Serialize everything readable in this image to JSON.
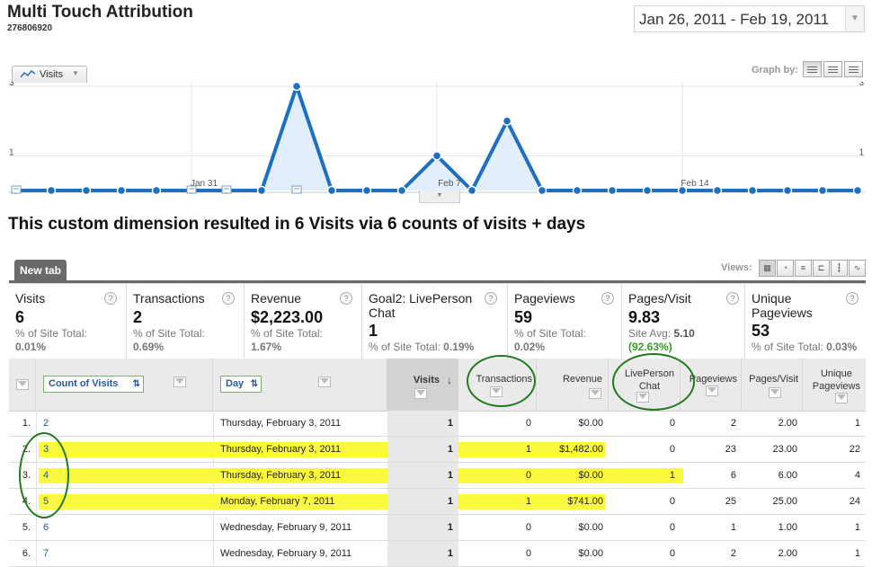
{
  "header": {
    "title": "Multi Touch Attribution",
    "profile_id": "276806920",
    "date_range": "Jan 26, 2011 - Feb 19, 2011"
  },
  "chart_controls": {
    "metric_label": "Visits",
    "graph_by_label": "Graph by:"
  },
  "chart_data": {
    "type": "line",
    "y_ticks_left": [
      "3",
      "1"
    ],
    "y_ticks_right": [
      "3",
      "1"
    ],
    "x_tick_labels": [
      "Jan 31",
      "Feb 7",
      "Feb 14"
    ],
    "ylim": [
      0,
      3
    ],
    "series": [
      {
        "values": [
          0,
          0,
          0,
          0,
          0,
          0,
          0,
          0,
          3,
          0,
          0,
          0,
          1,
          0,
          2,
          0,
          0,
          0,
          0,
          0,
          0,
          0,
          0,
          0,
          0
        ],
        "color": "#1e6fc2"
      }
    ],
    "annotation_days": [
      0,
      5,
      6,
      8
    ],
    "grid": true
  },
  "summary": {
    "heading": "This custom dimension resulted in 6 Visits via 6 counts of visits + days"
  },
  "tabs": {
    "active_label": "New tab",
    "views_label": "Views:"
  },
  "scorecard": [
    {
      "label": "Visits",
      "value": "6",
      "sub1": "% of Site Total:",
      "sub2": "0.01%"
    },
    {
      "label": "Transactions",
      "value": "2",
      "sub1": "% of Site Total:",
      "sub2": "0.69%"
    },
    {
      "label": "Revenue",
      "value": "$2,223.00",
      "sub1": "% of Site Total:",
      "sub2": "1.67%"
    },
    {
      "label": "Goal2: LivePerson Chat",
      "value": "1",
      "sub1": "% of Site Total:",
      "sub2": "0.19%"
    },
    {
      "label": "Pageviews",
      "value": "59",
      "sub1": "% of Site Total:",
      "sub2": "0.02%"
    },
    {
      "label": "Pages/Visit",
      "value": "9.83",
      "sub1": "Site Avg:",
      "sub1b": "5.10",
      "sub2": "(92.63%)"
    },
    {
      "label": "Unique Pageviews",
      "value": "53",
      "sub1": "% of Site Total:",
      "sub2": "0.03%"
    }
  ],
  "table": {
    "dim1_label": "Count of Visits",
    "dim2_label": "Day",
    "columns": {
      "visits": "Visits",
      "transactions": "Transactions",
      "revenue": "Revenue",
      "liveperson1": "LivePerson",
      "liveperson2": "Chat",
      "pageviews": "Pageviews",
      "pages_visit": "Pages/Visit",
      "unique1": "Unique",
      "unique2": "Pageviews"
    },
    "rows": [
      {
        "idx": "1.",
        "count": "2",
        "day": "Thursday, February 3, 2011",
        "visits": "1",
        "transactions": "0",
        "revenue": "$0.00",
        "liveperson": "0",
        "pageviews": "2",
        "pages_visit": "2.00",
        "unique": "1"
      },
      {
        "idx": "2.",
        "count": "3",
        "day": "Thursday, February 3, 2011",
        "visits": "1",
        "transactions": "1",
        "revenue": "$1,482.00",
        "liveperson": "0",
        "pageviews": "23",
        "pages_visit": "23.00",
        "unique": "22"
      },
      {
        "idx": "3.",
        "count": "4",
        "day": "Thursday, February 3, 2011",
        "visits": "1",
        "transactions": "0",
        "revenue": "$0.00",
        "liveperson": "1",
        "pageviews": "6",
        "pages_visit": "6.00",
        "unique": "4"
      },
      {
        "idx": "4.",
        "count": "5",
        "day": "Monday, February 7, 2011",
        "visits": "1",
        "transactions": "1",
        "revenue": "$741.00",
        "liveperson": "0",
        "pageviews": "25",
        "pages_visit": "25.00",
        "unique": "24"
      },
      {
        "idx": "5.",
        "count": "6",
        "day": "Wednesday, February 9, 2011",
        "visits": "1",
        "transactions": "0",
        "revenue": "$0.00",
        "liveperson": "0",
        "pageviews": "1",
        "pages_visit": "1.00",
        "unique": "1"
      },
      {
        "idx": "6.",
        "count": "7",
        "day": "Wednesday, February 9, 2011",
        "visits": "1",
        "transactions": "0",
        "revenue": "$0.00",
        "liveperson": "0",
        "pageviews": "2",
        "pages_visit": "2.00",
        "unique": "1"
      }
    ]
  }
}
